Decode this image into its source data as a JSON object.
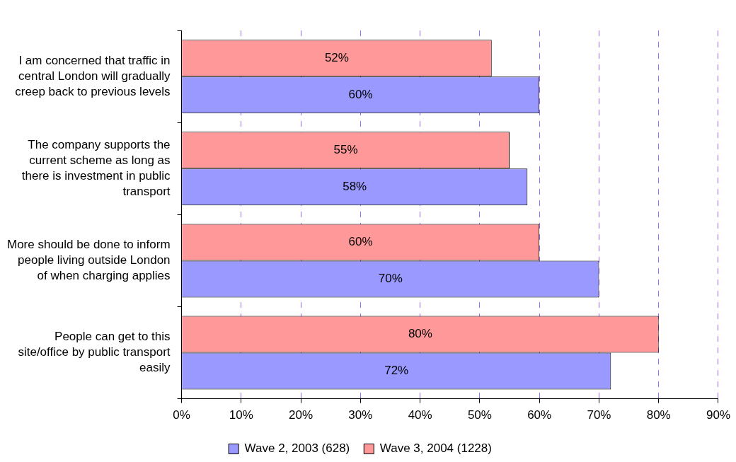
{
  "chart_data": {
    "type": "bar",
    "orientation": "horizontal",
    "categories": [
      "I am concerned that traffic in central London will gradually creep back to previous levels",
      "The company supports the current scheme as long as there is investment in public transport",
      "More should be done to inform people living outside London of when charging applies",
      "People can get to this site/office by public transport easily"
    ],
    "series": [
      {
        "name": "Wave 2, 2003 (628)",
        "color": "#9999ff",
        "values": [
          60,
          58,
          70,
          72
        ],
        "value_labels": [
          "60%",
          "58%",
          "70%",
          "72%"
        ]
      },
      {
        "name": "Wave 3, 2004 (1228)",
        "color": "#ff9999",
        "values": [
          52,
          55,
          60,
          80
        ],
        "value_labels": [
          "52%",
          "55%",
          "60%",
          "80%"
        ]
      }
    ],
    "xlim": [
      0,
      90
    ],
    "xticks": [
      {
        "value": 0,
        "label": "0%"
      },
      {
        "value": 10,
        "label": "10%"
      },
      {
        "value": 20,
        "label": "20%"
      },
      {
        "value": 30,
        "label": "30%"
      },
      {
        "value": 40,
        "label": "40%"
      },
      {
        "value": 50,
        "label": "50%"
      },
      {
        "value": 60,
        "label": "60%"
      },
      {
        "value": 70,
        "label": "70%"
      },
      {
        "value": 80,
        "label": "80%"
      },
      {
        "value": 90,
        "label": "90%"
      }
    ],
    "grid": "x",
    "legend": "bottom"
  }
}
